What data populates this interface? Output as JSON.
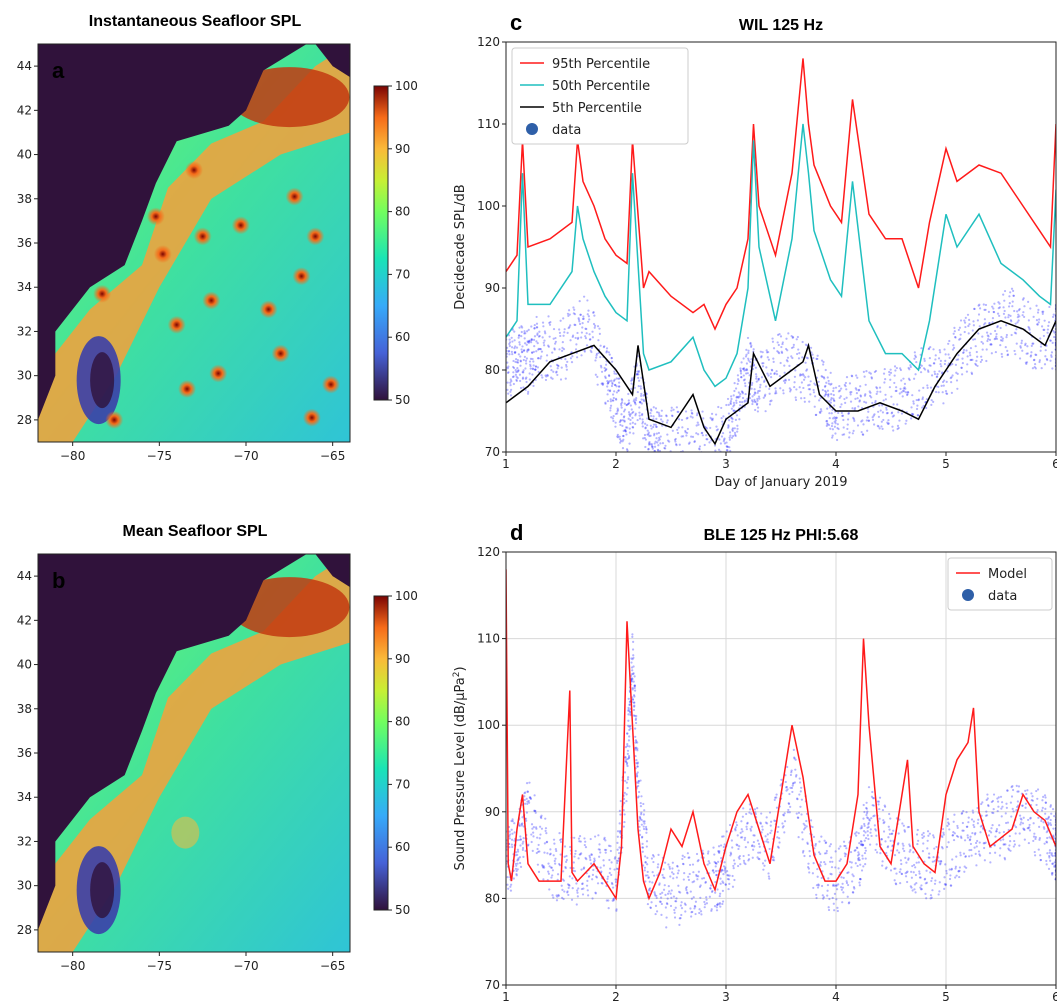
{
  "chart_data": [
    {
      "type": "heatmap",
      "panel_letter": "a",
      "title": "Instantaneous Seafloor SPL",
      "x_ticks": [
        "−80",
        "−75",
        "−70",
        "−65"
      ],
      "y_ticks": [
        "28",
        "30",
        "32",
        "34",
        "36",
        "38",
        "40",
        "42",
        "44"
      ],
      "xlim": [
        -82,
        -64
      ],
      "ylim": [
        27,
        45
      ],
      "colorbar": {
        "min": 50,
        "max": 100,
        "ticks": [
          "50",
          "60",
          "70",
          "80",
          "90",
          "100"
        ],
        "colormap": "turbo"
      },
      "hotspots": [
        [
          -72.5,
          36.3
        ],
        [
          -68.7,
          33.0
        ],
        [
          -66.2,
          28.1
        ],
        [
          -71.6,
          30.1
        ],
        [
          -65.1,
          29.6
        ],
        [
          -78.3,
          33.7
        ],
        [
          -74.8,
          35.5
        ],
        [
          -73.0,
          39.3
        ],
        [
          -66.0,
          36.3
        ],
        [
          -77.6,
          28.0
        ],
        [
          -75.2,
          37.2
        ],
        [
          -72.0,
          33.4
        ],
        [
          -68.0,
          31.0
        ],
        [
          -70.3,
          36.8
        ],
        [
          -66.8,
          34.5
        ],
        [
          -74.0,
          32.3
        ],
        [
          -73.4,
          29.4
        ],
        [
          -67.2,
          38.1
        ]
      ]
    },
    {
      "type": "heatmap",
      "panel_letter": "b",
      "title": "Mean Seafloor SPL",
      "x_ticks": [
        "−80",
        "−75",
        "−70",
        "−65"
      ],
      "y_ticks": [
        "28",
        "30",
        "32",
        "34",
        "36",
        "38",
        "40",
        "42",
        "44"
      ],
      "xlim": [
        -82,
        -64
      ],
      "ylim": [
        27,
        45
      ],
      "colorbar": {
        "min": 50,
        "max": 100,
        "ticks": [
          "50",
          "60",
          "70",
          "80",
          "90",
          "100"
        ],
        "colormap": "turbo"
      }
    },
    {
      "type": "line",
      "panel_letter": "c",
      "title": "WIL 125 Hz",
      "xlabel": "Day of January 2019",
      "ylabel": "Decidecade SPL/dB",
      "xlim": [
        1,
        6
      ],
      "ylim": [
        70,
        120
      ],
      "x_ticks": [
        "1",
        "2",
        "3",
        "4",
        "5",
        "6"
      ],
      "y_ticks": [
        "70",
        "80",
        "90",
        "100",
        "110",
        "120"
      ],
      "legend_position": "top-left",
      "series": [
        {
          "name": "95th Percentile",
          "color": "#ff1a1a",
          "x": [
            1.0,
            1.1,
            1.15,
            1.2,
            1.4,
            1.6,
            1.65,
            1.7,
            1.8,
            1.9,
            2.0,
            2.1,
            2.15,
            2.25,
            2.3,
            2.5,
            2.7,
            2.8,
            2.9,
            3.0,
            3.1,
            3.2,
            3.25,
            3.3,
            3.45,
            3.6,
            3.7,
            3.75,
            3.8,
            3.95,
            4.05,
            4.15,
            4.3,
            4.45,
            4.6,
            4.75,
            4.85,
            5.0,
            5.1,
            5.3,
            5.5,
            5.7,
            5.85,
            5.95,
            6.0
          ],
          "y": [
            92,
            94,
            108,
            95,
            96,
            98,
            108,
            103,
            100,
            96,
            94,
            93,
            108,
            90,
            92,
            89,
            87,
            88,
            85,
            88,
            90,
            96,
            110,
            100,
            94,
            104,
            118,
            110,
            105,
            100,
            98,
            113,
            99,
            96,
            96,
            90,
            98,
            107,
            103,
            105,
            104,
            100,
            97,
            95,
            110
          ]
        },
        {
          "name": "50th Percentile",
          "color": "#1fbfbf",
          "x": [
            1.0,
            1.1,
            1.15,
            1.2,
            1.4,
            1.6,
            1.65,
            1.7,
            1.8,
            1.9,
            2.0,
            2.1,
            2.15,
            2.25,
            2.3,
            2.5,
            2.7,
            2.8,
            2.9,
            3.0,
            3.1,
            3.2,
            3.25,
            3.3,
            3.45,
            3.6,
            3.7,
            3.75,
            3.8,
            3.95,
            4.05,
            4.15,
            4.3,
            4.45,
            4.6,
            4.75,
            4.85,
            5.0,
            5.1,
            5.3,
            5.5,
            5.7,
            5.85,
            5.95,
            6.0
          ],
          "y": [
            84,
            86,
            104,
            88,
            88,
            92,
            100,
            96,
            92,
            89,
            87,
            86,
            104,
            82,
            80,
            81,
            84,
            80,
            78,
            79,
            82,
            90,
            108,
            95,
            86,
            96,
            110,
            104,
            97,
            91,
            89,
            103,
            86,
            82,
            82,
            80,
            86,
            99,
            95,
            99,
            93,
            91,
            89,
            88,
            102
          ]
        },
        {
          "name": "5th Percentile",
          "color": "#000000",
          "x": [
            1.0,
            1.2,
            1.4,
            1.6,
            1.8,
            2.0,
            2.15,
            2.2,
            2.3,
            2.5,
            2.7,
            2.8,
            2.9,
            3.0,
            3.2,
            3.25,
            3.4,
            3.6,
            3.7,
            3.75,
            3.85,
            4.0,
            4.2,
            4.4,
            4.6,
            4.75,
            4.9,
            5.1,
            5.3,
            5.5,
            5.7,
            5.9,
            6.0
          ],
          "y": [
            76,
            78,
            81,
            82,
            83,
            80,
            77,
            83,
            74,
            73,
            77,
            73,
            71,
            74,
            76,
            82,
            78,
            80,
            81,
            83,
            77,
            75,
            75,
            76,
            75,
            74,
            78,
            82,
            85,
            86,
            85,
            83,
            86
          ]
        }
      ],
      "scatter_series": [
        {
          "name": "data",
          "color": "#2b2bff",
          "x": [
            1.0,
            1.1,
            1.2,
            1.3,
            1.5,
            1.7,
            1.9,
            2.0,
            2.1,
            2.2,
            2.3,
            2.4,
            2.6,
            2.8,
            3.0,
            3.1,
            3.2,
            3.3,
            3.5,
            3.7,
            3.9,
            4.0,
            4.2,
            4.4,
            4.6,
            4.8,
            5.0,
            5.2,
            5.4,
            5.6,
            5.8,
            6.0
          ],
          "y": [
            80,
            82,
            81,
            83,
            82,
            86,
            80,
            76,
            73,
            78,
            72,
            71,
            72,
            71,
            72,
            76,
            80,
            78,
            81,
            80,
            77,
            75,
            76,
            76,
            77,
            79,
            80,
            83,
            85,
            86,
            84,
            84
          ]
        }
      ]
    },
    {
      "type": "line",
      "panel_letter": "d",
      "title": "BLE 125 Hz PHI:5.68",
      "xlabel": "Day of January 2019",
      "ylabel": "Sound Pressure Level (dB/μPa",
      "ylabel_superscript": "2",
      "ylabel_tail": ")",
      "xlim": [
        1,
        6
      ],
      "ylim": [
        70,
        120
      ],
      "x_ticks": [
        "1",
        "2",
        "3",
        "4",
        "5",
        "6"
      ],
      "y_ticks": [
        "70",
        "80",
        "90",
        "100",
        "110",
        "120"
      ],
      "legend_position": "top-right",
      "series": [
        {
          "name": "Model",
          "color": "#ff1a1a",
          "x": [
            1.0,
            1.02,
            1.05,
            1.1,
            1.15,
            1.2,
            1.3,
            1.5,
            1.58,
            1.6,
            1.65,
            1.8,
            1.9,
            2.0,
            2.05,
            2.1,
            2.15,
            2.2,
            2.25,
            2.3,
            2.4,
            2.5,
            2.6,
            2.7,
            2.8,
            2.9,
            3.0,
            3.1,
            3.2,
            3.3,
            3.4,
            3.5,
            3.6,
            3.7,
            3.8,
            3.9,
            4.0,
            4.1,
            4.2,
            4.25,
            4.3,
            4.4,
            4.5,
            4.6,
            4.65,
            4.7,
            4.8,
            4.9,
            5.0,
            5.1,
            5.2,
            5.25,
            5.3,
            5.4,
            5.5,
            5.6,
            5.7,
            5.8,
            5.9,
            6.0
          ],
          "y": [
            118,
            84,
            82,
            88,
            92,
            84,
            82,
            82,
            104,
            83,
            82,
            84,
            82,
            80,
            86,
            112,
            100,
            88,
            82,
            80,
            83,
            88,
            86,
            90,
            84,
            81,
            86,
            90,
            92,
            88,
            84,
            92,
            100,
            94,
            85,
            82,
            82,
            84,
            92,
            110,
            100,
            86,
            84,
            92,
            96,
            86,
            84,
            83,
            92,
            96,
            98,
            102,
            90,
            86,
            87,
            88,
            92,
            90,
            89,
            86
          ]
        }
      ],
      "scatter_series": [
        {
          "name": "data",
          "color": "#2b2bff",
          "x": [
            1.0,
            1.1,
            1.2,
            1.4,
            1.6,
            1.8,
            2.0,
            2.1,
            2.15,
            2.2,
            2.3,
            2.5,
            2.7,
            2.9,
            3.0,
            3.2,
            3.4,
            3.6,
            3.8,
            4.0,
            4.2,
            4.3,
            4.5,
            4.7,
            4.9,
            5.1,
            5.3,
            5.5,
            5.7,
            5.9,
            6.0
          ],
          "y": [
            84,
            86,
            90,
            84,
            83,
            84,
            82,
            95,
            108,
            92,
            82,
            80,
            82,
            82,
            84,
            88,
            86,
            94,
            84,
            82,
            84,
            90,
            86,
            84,
            84,
            86,
            88,
            88,
            90,
            88,
            86
          ]
        }
      ]
    }
  ]
}
